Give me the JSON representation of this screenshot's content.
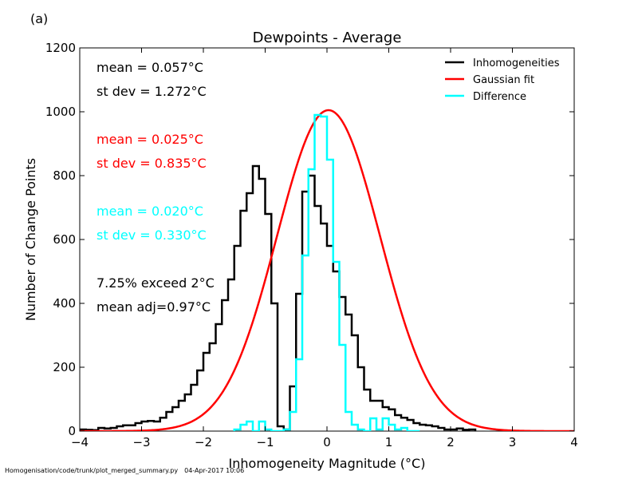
{
  "panel_label": "(a)",
  "footer": {
    "script_path": "Homogenisation/code/trunk/plot_merged_summary.py",
    "timestamp": "04-Apr-2017 10:06"
  },
  "chart_data": {
    "type": "histogram",
    "title": "Dewpoints - Average",
    "xlabel": "Inhomogeneity Magnitude (°C)",
    "ylabel": "Number of Change Points",
    "xlim": [
      -4,
      4
    ],
    "ylim": [
      0,
      1200
    ],
    "xticks": [
      -4,
      -3,
      -2,
      -1,
      0,
      1,
      2,
      3,
      4
    ],
    "xtick_labels": [
      "−4",
      "−3",
      "−2",
      "−1",
      "0",
      "1",
      "2",
      "3",
      "4"
    ],
    "yticks": [
      0,
      200,
      400,
      600,
      800,
      1000,
      1200
    ],
    "ytick_labels": [
      "0",
      "200",
      "400",
      "600",
      "800",
      "1000",
      "1200"
    ],
    "grid": false,
    "legend_position": "top-right",
    "bin_width": 0.1,
    "series": [
      {
        "name": "Inhomogeneities",
        "color": "#000000",
        "kind": "step",
        "bin_edges_start": -4.0,
        "values": [
          5,
          4,
          3,
          10,
          8,
          10,
          15,
          18,
          18,
          25,
          30,
          32,
          30,
          42,
          60,
          75,
          95,
          115,
          145,
          190,
          245,
          275,
          335,
          410,
          475,
          580,
          690,
          745,
          830,
          790,
          680,
          400,
          15,
          5,
          140,
          430,
          750,
          800,
          705,
          650,
          580,
          500,
          420,
          365,
          300,
          200,
          130,
          95,
          95,
          75,
          68,
          50,
          42,
          35,
          25,
          20,
          18,
          15,
          10,
          5,
          5,
          8,
          4,
          5
        ]
      },
      {
        "name": "Gaussian fit",
        "color": "#ff0000",
        "kind": "line",
        "mean": 0.025,
        "stdev": 0.835,
        "amplitude": 1005
      },
      {
        "name": "Difference",
        "color": "#00ffff",
        "kind": "step",
        "bin_edges_start": -1.5,
        "values": [
          5,
          20,
          30,
          0,
          30,
          5,
          0,
          0,
          5,
          60,
          225,
          550,
          820,
          990,
          985,
          850,
          530,
          270,
          60,
          20,
          5,
          0,
          40,
          5,
          40,
          20,
          5,
          10,
          0,
          0
        ]
      }
    ],
    "annotations": [
      {
        "text": "mean =  0.057°C",
        "color": "#000000"
      },
      {
        "text": "st dev =  1.272°C",
        "color": "#000000"
      },
      {
        "text": "mean =  0.025°C",
        "color": "#ff0000"
      },
      {
        "text": "st dev =  0.835°C",
        "color": "#ff0000"
      },
      {
        "text": "mean =  0.020°C",
        "color": "#00ffff"
      },
      {
        "text": "st dev =  0.330°C",
        "color": "#00ffff"
      },
      {
        "text": "7.25% exceed 2°C",
        "color": "#000000"
      },
      {
        "text": "mean adj=0.97°C",
        "color": "#000000"
      }
    ]
  }
}
